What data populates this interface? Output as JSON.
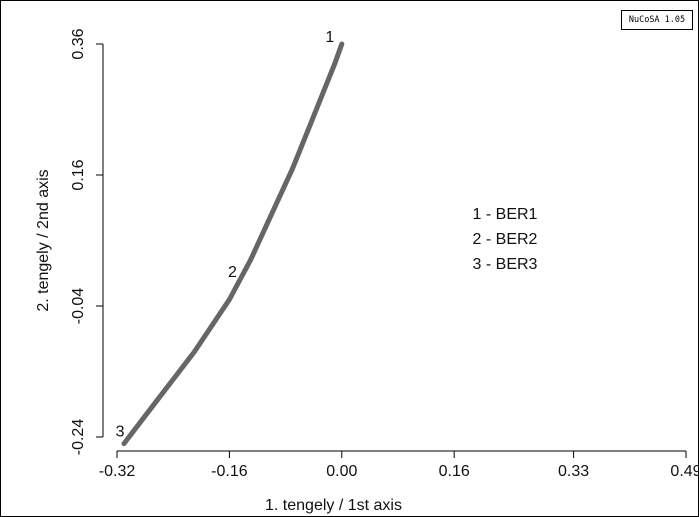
{
  "badge": "NuCoSA 1.05",
  "chart_data": {
    "type": "line",
    "title": "",
    "xlabel": "1. tengely / 1st axis",
    "ylabel": "2. tengely / 2nd axis",
    "xlim": [
      -0.32,
      0.49
    ],
    "ylim": [
      -0.24,
      0.36
    ],
    "x_ticks": [
      -0.32,
      -0.16,
      0.0,
      0.16,
      0.33,
      0.49
    ],
    "x_tick_labels": [
      "-0.32",
      "-0.16",
      "0.00",
      "0.16",
      "0.33",
      "0.49"
    ],
    "y_ticks": [
      -0.24,
      -0.04,
      0.16,
      0.36
    ],
    "y_tick_labels": [
      "-0.24",
      "-0.04",
      "0.16",
      "0.36"
    ],
    "grid": false,
    "line_color": "#666666",
    "curve": {
      "x": [
        -0.31,
        -0.26,
        -0.21,
        -0.16,
        -0.13,
        -0.1,
        -0.07,
        -0.04,
        -0.01,
        0.0
      ],
      "y": [
        -0.25,
        -0.18,
        -0.11,
        -0.03,
        0.03,
        0.1,
        0.17,
        0.25,
        0.33,
        0.36
      ]
    },
    "points": [
      {
        "label": "1",
        "x": 0.0,
        "y": 0.36
      },
      {
        "label": "2",
        "x": -0.14,
        "y": 0.0
      },
      {
        "label": "3",
        "x": -0.31,
        "y": -0.25
      }
    ],
    "legend": {
      "placement": "center-right",
      "entries": [
        "1 - BER1",
        "2 - BER2",
        "3 - BER3"
      ]
    }
  }
}
